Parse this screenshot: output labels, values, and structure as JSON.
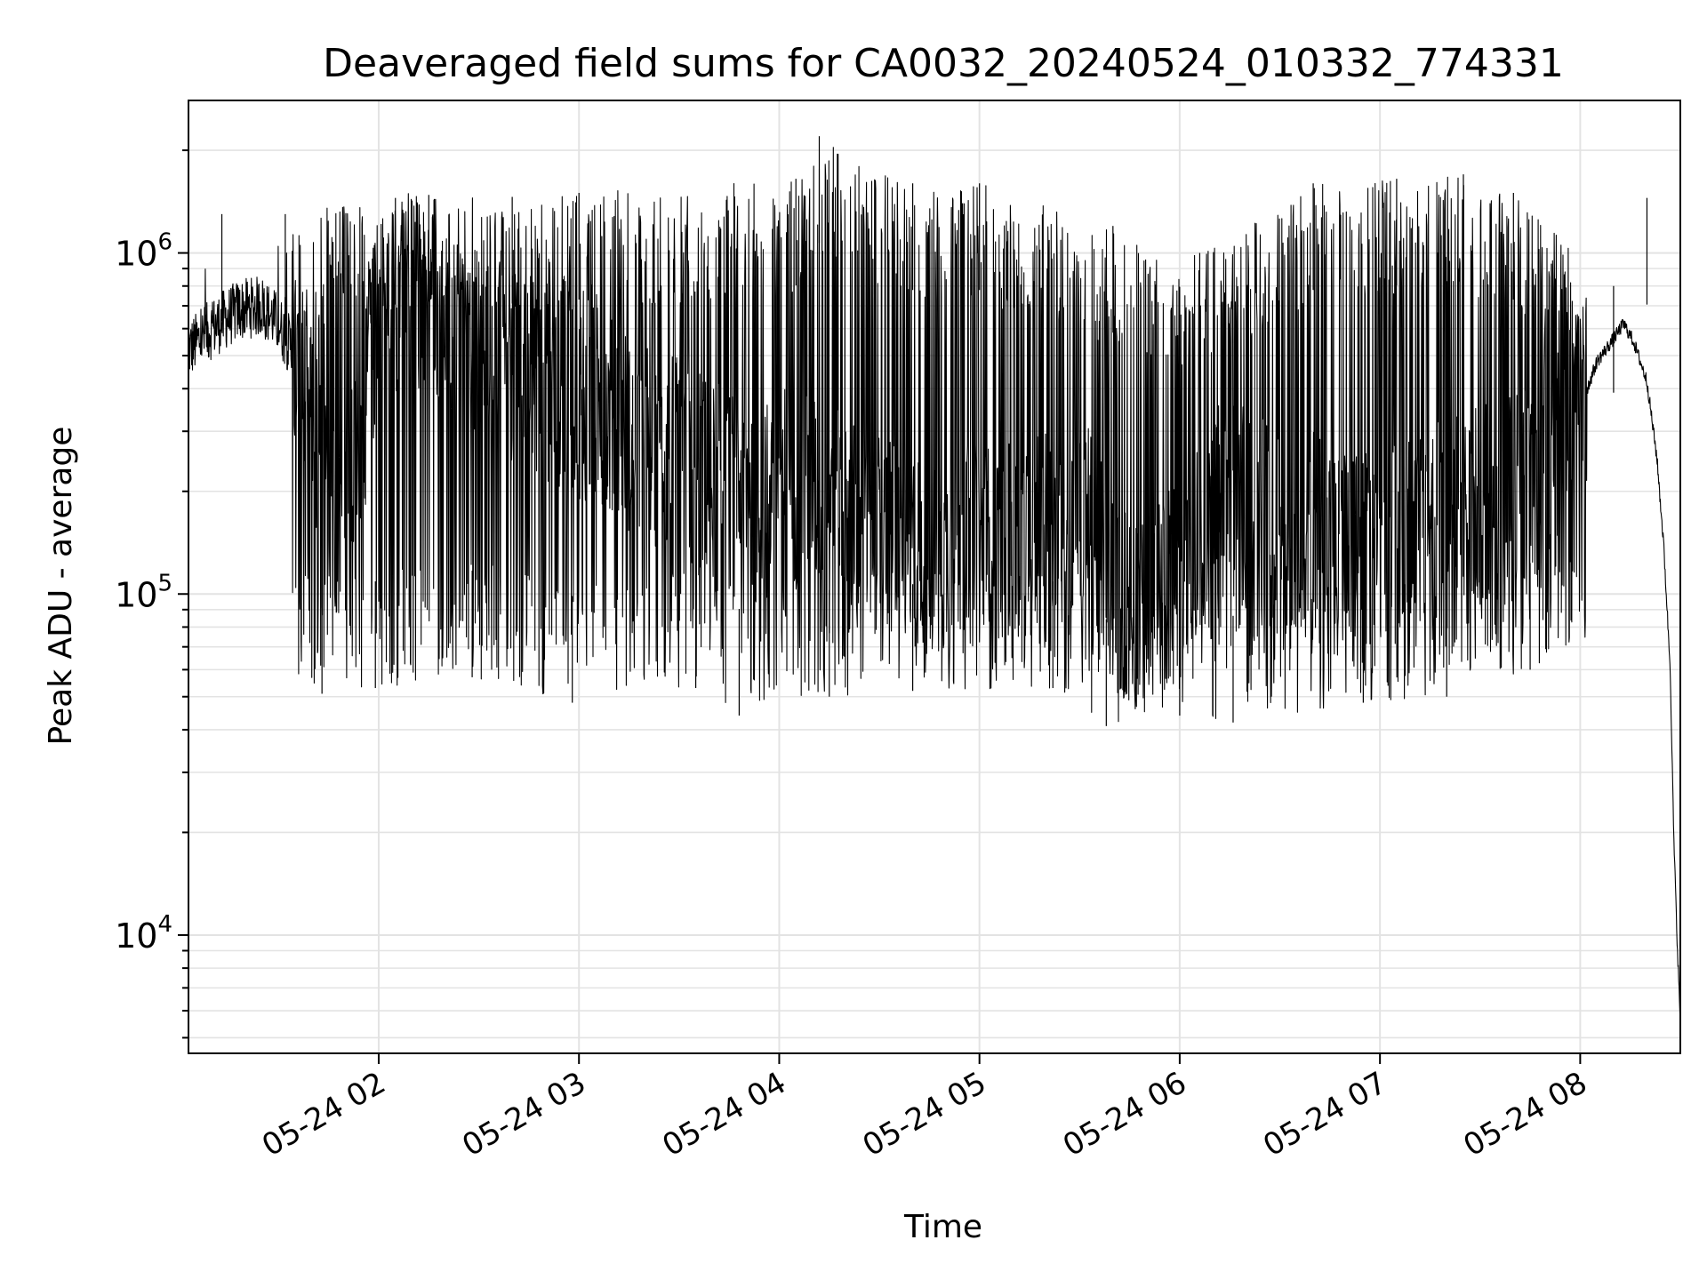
{
  "chart_data": {
    "type": "line",
    "title": "Deaveraged field sums for CA0032_20240524_010332_774331",
    "xlabel": "Time",
    "ylabel": "Peak ADU - average",
    "xscale": "time",
    "yscale": "log",
    "xlim": [
      "2024-05-24 01:03",
      "2024-05-24 08:30"
    ],
    "ylim": [
      4500,
      2800000
    ],
    "grid": true,
    "line_color": "#000000",
    "x_ticks": [
      {
        "t": "2024-05-24 02:00",
        "label": "05-24 02"
      },
      {
        "t": "2024-05-24 03:00",
        "label": "05-24 03"
      },
      {
        "t": "2024-05-24 04:00",
        "label": "05-24 04"
      },
      {
        "t": "2024-05-24 05:00",
        "label": "05-24 05"
      },
      {
        "t": "2024-05-24 06:00",
        "label": "05-24 06"
      },
      {
        "t": "2024-05-24 07:00",
        "label": "05-24 07"
      },
      {
        "t": "2024-05-24 08:00",
        "label": "05-24 08"
      }
    ],
    "y_ticks": [
      {
        "value": 10000,
        "base": "10",
        "exp": "4"
      },
      {
        "value": 100000,
        "base": "10",
        "exp": "5"
      },
      {
        "value": 1000000,
        "base": "10",
        "exp": "6"
      }
    ],
    "series": [
      {
        "values": [
          [
            "2024-05-24 01:03",
            520000
          ],
          [
            "2024-05-24 01:10",
            600000
          ],
          [
            "2024-05-24 01:18",
            680000
          ],
          [
            "2024-05-24 01:25",
            700000
          ],
          [
            "2024-05-24 01:30",
            620000
          ],
          [
            "2024-05-24 01:35",
            500000
          ],
          [
            "2024-05-24 01:38",
            380000
          ],
          [
            "2024-05-24 01:42",
            250000
          ],
          [
            "2024-05-24 01:46",
            180000
          ],
          [
            "2024-05-24 01:50",
            160000
          ],
          [
            "2024-05-24 01:55",
            300000
          ],
          [
            "2024-05-24 02:00",
            700000
          ],
          [
            "2024-05-24 02:10",
            800000
          ],
          [
            "2024-05-24 02:20",
            700000
          ],
          [
            "2024-05-24 02:30",
            500000
          ],
          [
            "2024-05-24 02:40",
            450000
          ],
          [
            "2024-05-24 02:50",
            420000
          ],
          [
            "2024-05-24 03:00",
            380000
          ],
          [
            "2024-05-24 03:15",
            300000
          ],
          [
            "2024-05-24 03:30",
            250000
          ],
          [
            "2024-05-24 03:45",
            200000
          ],
          [
            "2024-05-24 04:00",
            220000
          ],
          [
            "2024-05-24 04:15",
            180000
          ],
          [
            "2024-05-24 04:30",
            150000
          ],
          [
            "2024-05-24 04:45",
            130000
          ],
          [
            "2024-05-24 05:00",
            140000
          ],
          [
            "2024-05-24 05:15",
            150000
          ],
          [
            "2024-05-24 05:30",
            180000
          ],
          [
            "2024-05-24 05:38",
            120000
          ],
          [
            "2024-05-24 05:45",
            90000
          ],
          [
            "2024-05-24 06:00",
            110000
          ],
          [
            "2024-05-24 06:10",
            200000
          ],
          [
            "2024-05-24 06:20",
            180000
          ],
          [
            "2024-05-24 06:30",
            150000
          ],
          [
            "2024-05-24 06:40",
            160000
          ],
          [
            "2024-05-24 06:50",
            130000
          ],
          [
            "2024-05-24 07:00",
            140000
          ],
          [
            "2024-05-24 07:15",
            160000
          ],
          [
            "2024-05-24 07:30",
            180000
          ],
          [
            "2024-05-24 07:45",
            220000
          ],
          [
            "2024-05-24 07:55",
            280000
          ],
          [
            "2024-05-24 08:00",
            350000
          ],
          [
            "2024-05-24 08:05",
            480000
          ],
          [
            "2024-05-24 08:10",
            560000
          ],
          [
            "2024-05-24 08:13",
            620000
          ],
          [
            "2024-05-24 08:16",
            550000
          ],
          [
            "2024-05-24 08:20",
            420000
          ],
          [
            "2024-05-24 08:23",
            250000
          ],
          [
            "2024-05-24 08:25",
            140000
          ],
          [
            "2024-05-24 08:27",
            60000
          ],
          [
            "2024-05-24 08:28",
            20000
          ],
          [
            "2024-05-24 08:29",
            10000
          ],
          [
            "2024-05-24 08:30",
            5500
          ]
        ],
        "spikes_max": [
          [
            "2024-05-24 01:13",
            1300000
          ],
          [
            "2024-05-24 01:32",
            1300000
          ],
          [
            "2024-05-24 02:05",
            1450000
          ],
          [
            "2024-05-24 02:15",
            1480000
          ],
          [
            "2024-05-24 02:40",
            1460000
          ],
          [
            "2024-05-24 03:00",
            1500000
          ],
          [
            "2024-05-24 04:05",
            1650000
          ],
          [
            "2024-05-24 04:12",
            2200000
          ],
          [
            "2024-05-24 04:40",
            1600000
          ],
          [
            "2024-05-24 05:00",
            1600000
          ],
          [
            "2024-05-24 05:40",
            1200000
          ],
          [
            "2024-05-24 06:06",
            1000000
          ],
          [
            "2024-05-24 06:40",
            1600000
          ],
          [
            "2024-05-24 07:05",
            1650000
          ],
          [
            "2024-05-24 07:25",
            1700000
          ],
          [
            "2024-05-24 07:40",
            1500000
          ],
          [
            "2024-05-24 08:10",
            800000
          ],
          [
            "2024-05-24 08:20",
            1450000
          ]
        ],
        "spikes_min": [
          [
            "2024-05-24 01:43",
            51000
          ],
          [
            "2024-05-24 01:59",
            53000
          ],
          [
            "2024-05-24 02:28",
            57000
          ],
          [
            "2024-05-24 02:58",
            48000
          ],
          [
            "2024-05-24 03:35",
            53000
          ],
          [
            "2024-05-24 03:48",
            44000
          ],
          [
            "2024-05-24 04:15",
            50000
          ],
          [
            "2024-05-24 04:40",
            52000
          ],
          [
            "2024-05-24 05:22",
            53000
          ],
          [
            "2024-05-24 05:38",
            41000
          ],
          [
            "2024-05-24 06:00",
            44000
          ],
          [
            "2024-05-24 06:16",
            42000
          ],
          [
            "2024-05-24 06:55",
            48000
          ],
          [
            "2024-05-24 07:20",
            50000
          ],
          [
            "2024-05-24 07:45",
            60000
          ]
        ]
      }
    ]
  }
}
